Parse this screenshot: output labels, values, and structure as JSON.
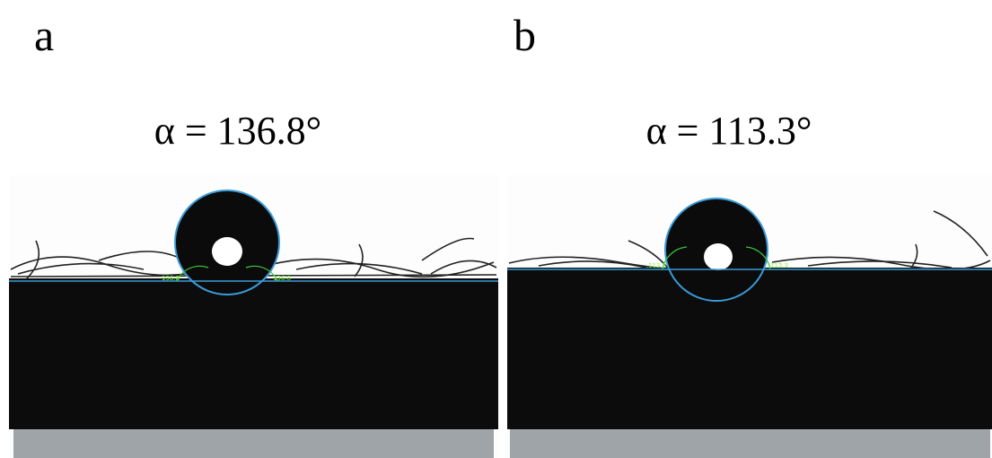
{
  "panels": [
    {
      "label": "a",
      "caption": "α = 136.8°",
      "left_angle": "136.8",
      "right_angle": "136.8"
    },
    {
      "label": "b",
      "caption": "α = 113.3°",
      "left_angle": "113.3",
      "right_angle": "113.3"
    }
  ]
}
